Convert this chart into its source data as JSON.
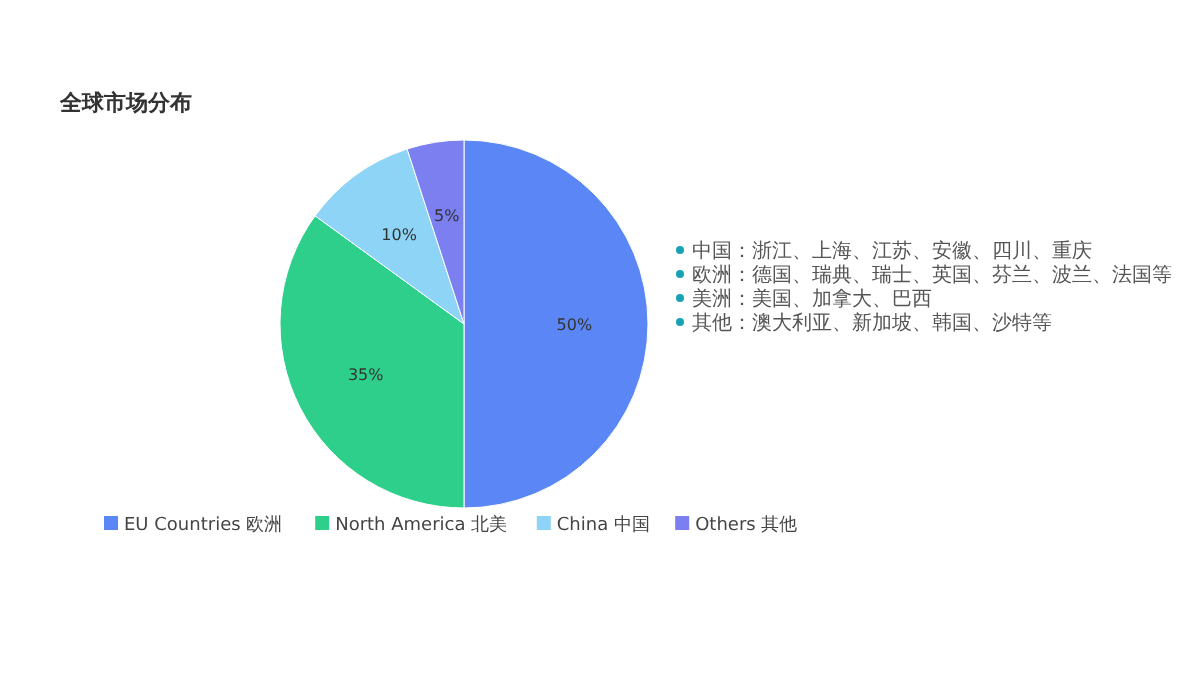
{
  "chart_data": {
    "type": "pie",
    "title": "全球市场分布",
    "categories": [
      "EU Countries 欧洲",
      "North America 北美",
      "China 中国",
      "Others 其他"
    ],
    "values": [
      50,
      35,
      10,
      5
    ],
    "colors": [
      "#5b86f5",
      "#2ecf8a",
      "#8dd4f7",
      "#7b7ff0"
    ],
    "value_labels": [
      "50%",
      "35%",
      "10%",
      "5%"
    ],
    "legend": "bottom",
    "annotations": [
      "中国：浙江、上海、江苏、安徽、四川、重庆",
      "欧洲：德国、瑞典、瑞士、英国、芬兰、波兰、法国等",
      "美洲：美国、加拿大、巴西",
      "其他：澳大利亚、新加坡、韩国、沙特等"
    ]
  }
}
